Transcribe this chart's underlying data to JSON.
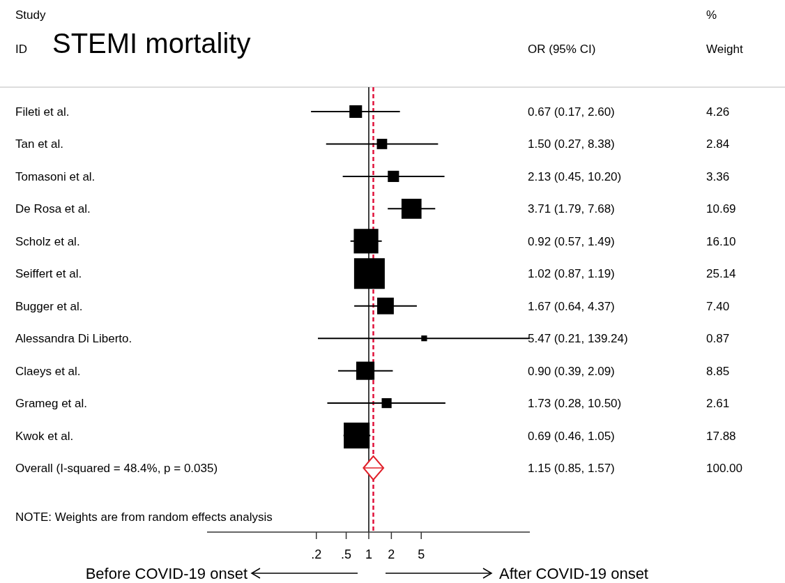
{
  "chart_data": {
    "type": "scatter",
    "title": "STEMI mortality",
    "orientation": "horizontal",
    "log": "x",
    "categories": [
      "Fileti et al.",
      "Tan et al.",
      "Tomasoni et al.",
      "De Rosa et al.",
      "Scholz et al.",
      "Seiffert et al.",
      "Bugger et al.",
      "Alessandra Di Liberto.",
      "Claeys et al.",
      "Grameg et al.",
      "Kwok et al.",
      "Overall  (I-squared = 48.4%, p = 0.035)"
    ],
    "xlim": [
      0.007,
      140
    ],
    "xticks": [
      {
        "value": 0.2,
        "label": ".2"
      },
      {
        "value": 0.5,
        "label": ".5"
      },
      1,
      2,
      5
    ],
    "series": [
      {
        "marker": "square",
        "color": "#000000",
        "values": [
          0.67,
          1.5,
          2.13,
          3.71,
          0.92,
          1.02,
          1.67,
          5.47,
          0.9,
          1.73,
          0.69,
          null
        ],
        "errors": [
          [
            0.17,
            2.6
          ],
          [
            0.27,
            8.38
          ],
          [
            0.45,
            10.2
          ],
          [
            1.79,
            7.68
          ],
          [
            0.57,
            1.49
          ],
          null,
          [
            0.64,
            4.37
          ],
          [
            0.21,
            139.24
          ],
          [
            0.39,
            2.09
          ],
          [
            0.28,
            10.5
          ],
          [
            0.46,
            1.05
          ],
          null
        ],
        "sizes": [
          0.169,
          0.113,
          0.134,
          0.425,
          0.64,
          1,
          0.294,
          0.035,
          0.352,
          0.104,
          0.711,
          null
        ]
      },
      {
        "marker": "diamond",
        "color": "#e0202a",
        "values": [
          null,
          null,
          null,
          null,
          null,
          null,
          null,
          null,
          null,
          null,
          null,
          1.15
        ],
        "errors": [
          null,
          null,
          null,
          null,
          null,
          null,
          null,
          null,
          null,
          null,
          null,
          [
            0.85,
            1.57
          ]
        ]
      }
    ],
    "ref_lines": [
      {
        "axis": "x",
        "value": 1,
        "color": "#000000",
        "line_style": "solid"
      },
      {
        "axis": "x",
        "value": 1.15,
        "color": "#e0103a",
        "line_style": "dashed"
      }
    ],
    "annotations": [
      "Study",
      "ID",
      "OR (95% CI)",
      "%",
      "Weight",
      "NOTE: Weights are from random effects analysis",
      "Before COVID-19 onset",
      "After COVID-19 onset",
      "0.67 (0.17, 2.60)",
      "1.50 (0.27, 8.38)",
      "2.13 (0.45, 10.20)",
      "3.71 (1.79, 7.68)",
      "0.92 (0.57, 1.49)",
      "1.02 (0.87, 1.19)",
      "1.67 (0.64, 4.37)",
      "5.47 (0.21, 139.24)",
      "0.90 (0.39, 2.09)",
      "1.73 (0.28, 10.50)",
      "0.69 (0.46, 1.05)",
      "1.15 (0.85, 1.57)",
      "4.26",
      "2.84",
      "3.36",
      "10.69",
      "16.10",
      "25.14",
      "7.40",
      "0.87",
      "8.85",
      "2.61",
      "17.88",
      "100.00"
    ]
  }
}
